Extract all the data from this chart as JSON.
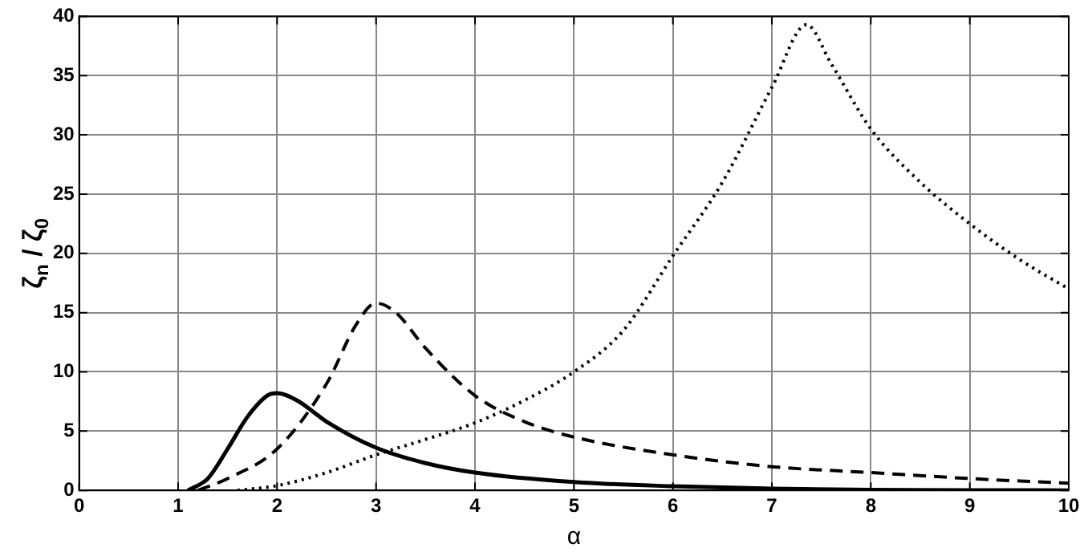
{
  "chart_data": {
    "type": "line",
    "xlabel": "α",
    "ylabel": "ζ$_{n}$ / ζ$_{0}$",
    "xlim": [
      0,
      10
    ],
    "xticks": [
      0,
      1,
      2,
      3,
      4,
      5,
      6,
      7,
      8,
      9,
      10
    ],
    "ylim": [
      0,
      40
    ],
    "yticks": [
      0,
      5,
      10,
      15,
      20,
      25,
      30,
      35,
      40
    ],
    "grid": true,
    "marker": "none",
    "series": [
      {
        "color": "#000000",
        "line_style": "solid",
        "x": [
          1.1,
          1.3,
          1.5,
          1.7,
          1.9,
          2.0,
          2.2,
          2.5,
          3,
          3.5,
          4,
          5,
          6,
          7,
          8,
          9,
          10
        ],
        "values": [
          0,
          1,
          3.5,
          6.2,
          8,
          8.2,
          7.6,
          5.8,
          3.6,
          2.3,
          1.5,
          0.7,
          0.35,
          0.15,
          0.05,
          0.02,
          0
        ]
      },
      {
        "color": "#000000",
        "line_style": "dashed",
        "x": [
          1.2,
          1.5,
          2,
          2.5,
          2.8,
          3,
          3.2,
          3.5,
          4,
          4.5,
          5,
          6,
          7,
          8,
          9,
          10
        ],
        "values": [
          0,
          1,
          3.5,
          9,
          14,
          15.8,
          15,
          12,
          8,
          5.8,
          4.5,
          3,
          2,
          1.5,
          1,
          0.6
        ]
      },
      {
        "color": "#000000",
        "line_style": "dotted",
        "x": [
          1.6,
          2,
          2.5,
          3,
          3.5,
          4,
          4.5,
          5,
          5.5,
          6,
          6.5,
          7,
          7.35,
          7.6,
          8,
          8.5,
          9,
          9.5,
          10
        ],
        "values": [
          0,
          0.4,
          1.5,
          3,
          4.3,
          5.7,
          7.6,
          10,
          13.5,
          19.8,
          26,
          34,
          39.3,
          36,
          30.5,
          26,
          22.5,
          19.5,
          17
        ]
      }
    ]
  }
}
